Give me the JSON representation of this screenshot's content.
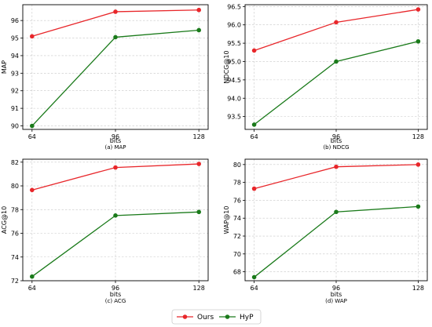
{
  "legend": {
    "entries": [
      {
        "name": "Ours",
        "color": "#e8262a"
      },
      {
        "name": "HyP",
        "color": "#1a7a1a"
      }
    ]
  },
  "chart_data": [
    {
      "type": "line",
      "caption": "(a) MAP",
      "xlabel": "bits",
      "ylabel": "MAP",
      "x": [
        64,
        96,
        128
      ],
      "ylim": [
        89.8,
        96.9
      ],
      "yticks": [
        90,
        91,
        92,
        93,
        94,
        95,
        96
      ],
      "ytick_labels": [
        "90",
        "91",
        "92",
        "93",
        "94",
        "95",
        "96"
      ],
      "grid": true,
      "series": [
        {
          "name": "Ours",
          "color": "#e8262a",
          "values": [
            95.1,
            96.5,
            96.6
          ]
        },
        {
          "name": "HyP",
          "color": "#1a7a1a",
          "values": [
            90.0,
            95.05,
            95.45
          ]
        }
      ]
    },
    {
      "type": "line",
      "caption": "(b) NDCG",
      "xlabel": "bits",
      "ylabel": "NDCG@10",
      "x": [
        64,
        96,
        128
      ],
      "ylim": [
        93.15,
        96.55
      ],
      "yticks": [
        93.5,
        94.0,
        94.5,
        95.0,
        95.5,
        96.0,
        96.5
      ],
      "ytick_labels": [
        "93.5",
        "94.0",
        "94.5",
        "95.0",
        "95.5",
        "96.0",
        "96.5"
      ],
      "grid": true,
      "series": [
        {
          "name": "Ours",
          "color": "#e8262a",
          "values": [
            95.3,
            96.07,
            96.42
          ]
        },
        {
          "name": "HyP",
          "color": "#1a7a1a",
          "values": [
            93.28,
            95.0,
            95.55
          ]
        }
      ]
    },
    {
      "type": "line",
      "caption": "(c) ACG",
      "xlabel": "bits",
      "ylabel": "ACG@10",
      "x": [
        64,
        96,
        128
      ],
      "ylim": [
        72.0,
        82.25
      ],
      "yticks": [
        72,
        74,
        76,
        78,
        80,
        82
      ],
      "ytick_labels": [
        "72",
        "74",
        "76",
        "78",
        "80",
        "82"
      ],
      "grid": true,
      "series": [
        {
          "name": "Ours",
          "color": "#e8262a",
          "values": [
            79.65,
            81.55,
            81.85
          ]
        },
        {
          "name": "HyP",
          "color": "#1a7a1a",
          "values": [
            72.35,
            77.5,
            77.8
          ]
        }
      ]
    },
    {
      "type": "line",
      "caption": "(d) WAP",
      "xlabel": "bits",
      "ylabel": "WAP@10",
      "x": [
        64,
        96,
        128
      ],
      "ylim": [
        67.0,
        80.6
      ],
      "yticks": [
        68,
        70,
        72,
        74,
        76,
        78,
        80
      ],
      "ytick_labels": [
        "68",
        "70",
        "72",
        "74",
        "76",
        "78",
        "80"
      ],
      "grid": true,
      "series": [
        {
          "name": "Ours",
          "color": "#e8262a",
          "values": [
            77.3,
            79.75,
            80.0
          ]
        },
        {
          "name": "HyP",
          "color": "#1a7a1a",
          "values": [
            67.4,
            74.7,
            75.3
          ]
        }
      ]
    }
  ]
}
